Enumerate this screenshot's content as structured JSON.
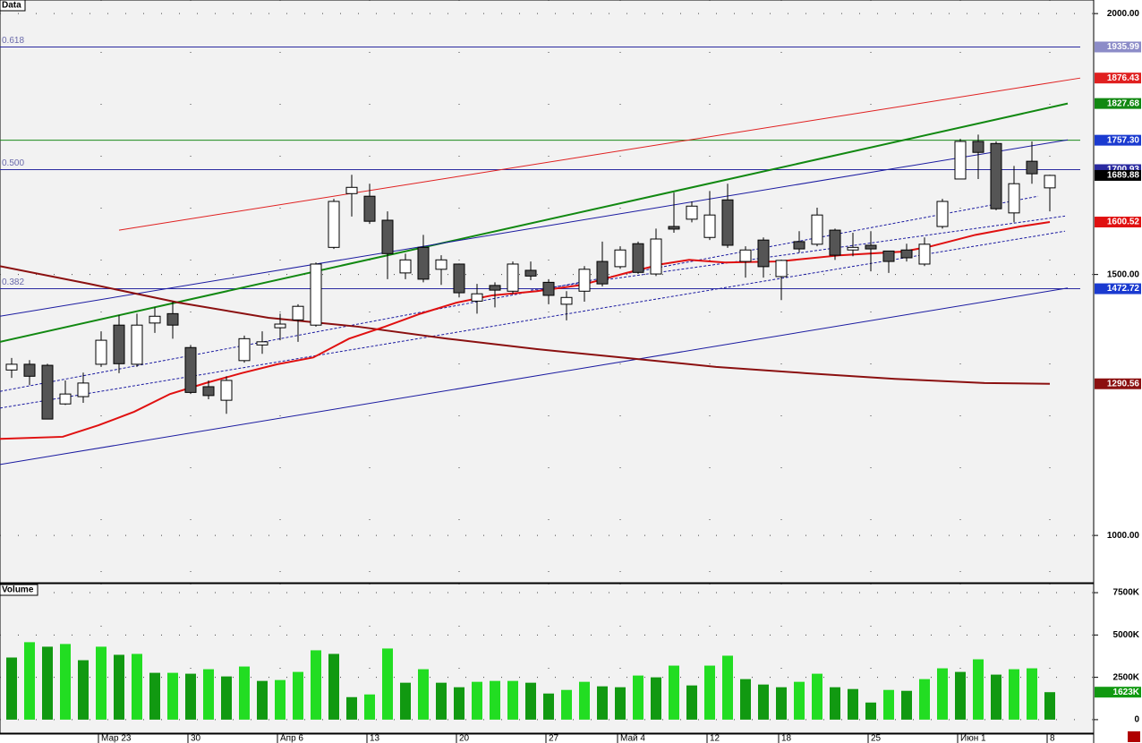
{
  "chart_data": [
    {
      "type": "candlestick",
      "title": "Data",
      "categories": [
        null,
        null,
        null,
        null,
        null,
        "Мар 23",
        null,
        null,
        null,
        null,
        "30",
        null,
        null,
        null,
        null,
        "Апр 6",
        null,
        null,
        null,
        null,
        "13",
        null,
        null,
        null,
        null,
        "20",
        null,
        null,
        null,
        null,
        "27",
        null,
        null,
        null,
        "Май 4",
        null,
        null,
        null,
        null,
        "12",
        null,
        null,
        null,
        "18",
        null,
        null,
        null,
        null,
        "25",
        null,
        null,
        null,
        null,
        "Июн 1",
        null,
        null,
        null,
        null,
        "8"
      ],
      "open": [
        1317,
        1328,
        1326,
        1252,
        1266,
        1328,
        1403,
        1328,
        1407,
        1425,
        1360,
        1285,
        1259,
        1335,
        1365,
        1398,
        1413,
        1403,
        1552,
        1655,
        1650,
        1604,
        1503,
        1552,
        1510,
        1520,
        1449,
        1479,
        1468,
        1508,
        1485,
        1443,
        1468,
        1525,
        1515,
        1559,
        1501,
        1592,
        1606,
        1571,
        1643,
        1525,
        1566,
        1496,
        1563,
        1558,
        1585,
        1547,
        1556,
        1545,
        1547,
        1520,
        1592,
        1683,
        1755,
        1751,
        1618,
        1717,
        1666
      ],
      "high": [
        1340,
        1336,
        1329,
        1297,
        1312,
        1391,
        1422,
        1425,
        1437,
        1448,
        1365,
        1297,
        1305,
        1383,
        1391,
        1425,
        1443,
        1523,
        1645,
        1691,
        1674,
        1621,
        1540,
        1576,
        1537,
        1521,
        1482,
        1485,
        1525,
        1525,
        1491,
        1468,
        1516,
        1563,
        1554,
        1563,
        1588,
        1657,
        1640,
        1660,
        1674,
        1554,
        1571,
        1528,
        1583,
        1628,
        1588,
        1580,
        1583,
        1545,
        1559,
        1571,
        1645,
        1760,
        1768,
        1755,
        1708,
        1755,
        1691
      ],
      "low": [
        1302,
        1288,
        1223,
        1250,
        1254,
        1323,
        1311,
        1323,
        1388,
        1377,
        1271,
        1261,
        1233,
        1331,
        1348,
        1374,
        1371,
        1400,
        1549,
        1611,
        1597,
        1491,
        1491,
        1485,
        1480,
        1456,
        1425,
        1437,
        1463,
        1489,
        1443,
        1412,
        1448,
        1477,
        1511,
        1501,
        1497,
        1580,
        1600,
        1566,
        1551,
        1494,
        1494,
        1451,
        1542,
        1554,
        1528,
        1535,
        1506,
        1503,
        1525,
        1516,
        1588,
        1683,
        1683,
        1623,
        1600,
        1674,
        1621
      ],
      "close": [
        1328,
        1305,
        1223,
        1271,
        1292,
        1374,
        1329,
        1403,
        1420,
        1403,
        1274,
        1268,
        1297,
        1377,
        1371,
        1405,
        1439,
        1520,
        1640,
        1667,
        1602,
        1540,
        1528,
        1491,
        1528,
        1465,
        1463,
        1470,
        1520,
        1497,
        1460,
        1456,
        1510,
        1482,
        1547,
        1504,
        1568,
        1587,
        1631,
        1614,
        1556,
        1547,
        1515,
        1527,
        1549,
        1614,
        1537,
        1552,
        1549,
        1525,
        1532,
        1558,
        1640,
        1755,
        1734,
        1626,
        1674,
        1693,
        1689.88
      ],
      "up_color": "#ffffff",
      "down_color": "#555555",
      "ylim": [
        911,
        2026
      ],
      "yticks": [
        {
          "value": 1000,
          "label": "1000.00"
        },
        {
          "value": 1500,
          "label": "1500.00"
        },
        {
          "value": 2000,
          "label": "2000.00"
        }
      ],
      "grid": true,
      "hlines": [
        {
          "price": 1935.99,
          "fib": "0.618",
          "color": "#2a2aa0",
          "tag_color": "#8c8cc8"
        },
        {
          "price": 1757.3,
          "price_label": "1757.30",
          "color": "#1a8a1a",
          "tag_color": "#1a3ad0"
        },
        {
          "price": 1700.93,
          "fib": "0.500",
          "color": "#2a2aa0",
          "tag_color": "#2a2aa0"
        },
        {
          "price": 1472.72,
          "fib": "0.382",
          "color": "#2a2aa0",
          "tag_color": "#1a3ad0"
        }
      ],
      "lines": [
        {
          "color": "#e02020",
          "tag": true,
          "x": [
            6,
            59.7
          ],
          "y": [
            1585,
            1876.43
          ]
        },
        {
          "color": "#118811",
          "bold": true,
          "tag": true,
          "x": [
            -0.65,
            59
          ],
          "y": [
            1371,
            1827.68
          ]
        },
        {
          "color": "#1a1aa0",
          "x": [
            -0.65,
            59
          ],
          "y": [
            1420,
            1758
          ]
        },
        {
          "color": "#1a1aa0",
          "x": [
            -0.65,
            59
          ],
          "y": [
            1136,
            1474
          ]
        },
        {
          "color": "#1a1aa0",
          "dash": true,
          "x": [
            -0.65,
            57.35
          ],
          "y": [
            1276,
            1650
          ]
        },
        {
          "color": "#1a1aa0",
          "dash": true,
          "x": [
            29,
            58.85
          ],
          "y": [
            1470,
            1612
          ]
        },
        {
          "color": "#1a1aa0",
          "dash": true,
          "x": [
            -0.65,
            58.85
          ],
          "y": [
            1244,
            1583
          ]
        },
        {
          "color": "#8b1010",
          "bold": true,
          "tag": true,
          "x": [
            -0.65,
            4.35,
            9.35,
            14.35,
            19.35,
            24.35,
            29.35,
            34.35,
            39.35,
            44.35,
            49.35,
            54.35,
            58
          ],
          "y": [
            1516,
            1482,
            1446,
            1417,
            1400,
            1377,
            1357,
            1340,
            1323,
            1311,
            1300,
            1292,
            1290.56
          ]
        },
        {
          "color": "#e01010",
          "bold": true,
          "tag": true,
          "x": [
            -0.65,
            2.85,
            4.85,
            6.85,
            8.85,
            10.85,
            12.85,
            14.85,
            16.85,
            18.85,
            20.85,
            22.85,
            24.85,
            26.85,
            29.35,
            31.85,
            34.35,
            36.35,
            37.85,
            39.85,
            42.85,
            46.35,
            49.85,
            51.35,
            53.85,
            56.35,
            58
          ],
          "y": [
            1185,
            1189,
            1211,
            1237,
            1271,
            1292,
            1311,
            1328,
            1341,
            1377,
            1400,
            1425,
            1446,
            1460,
            1468,
            1480,
            1503,
            1520,
            1528,
            1523,
            1525,
            1537,
            1544,
            1554,
            1576,
            1592,
            1600.52
          ]
        }
      ]
    },
    {
      "type": "volume",
      "title": "Volume",
      "values": [
        3670,
        4575,
        4309,
        4468,
        3511,
        4309,
        3830,
        3883,
        2766,
        2766,
        2713,
        2979,
        2553,
        3138,
        2287,
        2340,
        2819,
        4096,
        3883,
        1330,
        1489,
        4202,
        2181,
        2979,
        2181,
        1915,
        2234,
        2287,
        2287,
        2181,
        1543,
        1755,
        2234,
        1968,
        1915,
        2606,
        2500,
        3191,
        2021,
        3191,
        3777,
        2394,
        2075,
        1915,
        2234,
        2713,
        1915,
        1809,
        1011,
        1755,
        1702,
        2394,
        3032,
        2819,
        3564,
        2660,
        2979,
        3032,
        1623
      ],
      "value_labels": [
        null,
        null,
        null,
        null,
        null,
        null,
        null,
        null,
        null,
        null,
        null,
        null,
        null,
        null,
        null,
        null,
        null,
        null,
        null,
        null,
        null,
        null,
        null,
        null,
        null,
        null,
        null,
        null,
        null,
        null,
        null,
        null,
        null,
        null,
        null,
        null,
        null,
        null,
        null,
        null,
        null,
        null,
        null,
        null,
        null,
        null,
        null,
        null,
        null,
        null,
        null,
        null,
        null,
        null,
        null,
        null,
        null,
        null,
        "1623K"
      ],
      "up_color": "#22dd22",
      "down_color": "#119911",
      "ylim": [
        -851,
        8032
      ],
      "yticks": [
        0,
        {
          "value": 2500,
          "label": "2500K"
        },
        {
          "value": 5000,
          "label": "5000K"
        },
        {
          "value": 7500,
          "label": "7500K"
        }
      ],
      "grid": true
    }
  ]
}
